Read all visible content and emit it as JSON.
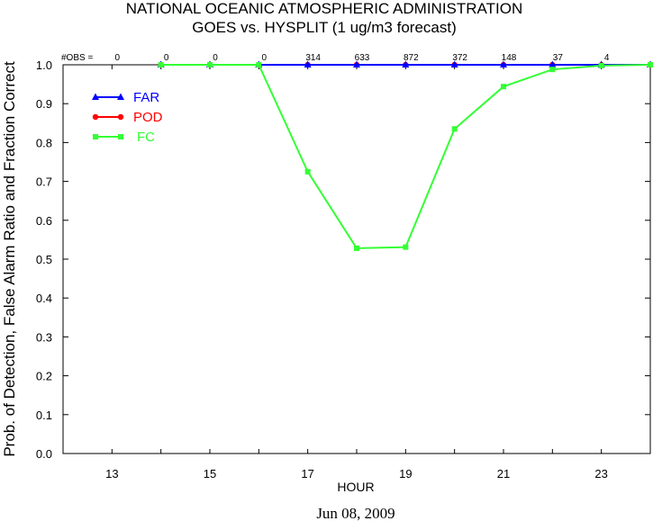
{
  "chart_data": {
    "type": "line",
    "title": "NATIONAL OCEANIC ATMOSPHERIC ADMINISTRATION",
    "subtitle": "GOES vs. HYSPLIT  (1 ug/m3 forecast)",
    "xlabel": "HOUR",
    "ylabel": "Prob. of Detection, False Alarm Ratio and Fraction Correct",
    "date_label": "Jun 08, 2009",
    "xlim": [
      12,
      24
    ],
    "ylim": [
      0.0,
      1.0
    ],
    "x_ticks": [
      "13",
      "15",
      "17",
      "19",
      "21",
      "23"
    ],
    "y_ticks": [
      "0.0",
      "0.1",
      "0.2",
      "0.3",
      "0.4",
      "0.5",
      "0.6",
      "0.7",
      "0.8",
      "0.9",
      "1.0"
    ],
    "obs_label": "#OBS =",
    "obs": [
      {
        "x": 13,
        "n": "0"
      },
      {
        "x": 14,
        "n": "0"
      },
      {
        "x": 15,
        "n": "0"
      },
      {
        "x": 16,
        "n": "0"
      },
      {
        "x": 17,
        "n": "314"
      },
      {
        "x": 18,
        "n": "633"
      },
      {
        "x": 19,
        "n": "872"
      },
      {
        "x": 20,
        "n": "372"
      },
      {
        "x": 21,
        "n": "148"
      },
      {
        "x": 22,
        "n": "37"
      },
      {
        "x": 23,
        "n": "4"
      }
    ],
    "legend_position": "top-left",
    "series": [
      {
        "name": "FAR",
        "color": "#0000ff",
        "marker": "triangle",
        "x": [
          14,
          15,
          16,
          17,
          18,
          19,
          20,
          21,
          22,
          23,
          24
        ],
        "values": [
          1.0,
          1.0,
          1.0,
          1.0,
          1.0,
          1.0,
          1.0,
          1.0,
          1.0,
          1.0,
          1.0
        ]
      },
      {
        "name": "POD",
        "color": "#ff0000",
        "marker": "circle",
        "x": [
          14,
          15,
          16,
          17,
          18,
          19,
          20,
          21,
          22,
          23,
          24
        ],
        "values": [
          1.0,
          1.0,
          1.0,
          1.0,
          1.0,
          1.0,
          1.0,
          1.0,
          1.0,
          1.0,
          1.0
        ]
      },
      {
        "name": "FC",
        "color": "#33ff33",
        "marker": "square",
        "x": [
          14,
          15,
          16,
          17,
          18,
          19,
          20,
          21,
          22,
          23,
          24
        ],
        "values": [
          1.0,
          1.0,
          1.0,
          0.725,
          0.528,
          0.531,
          0.835,
          0.944,
          0.988,
          0.998,
          1.0
        ]
      }
    ]
  }
}
